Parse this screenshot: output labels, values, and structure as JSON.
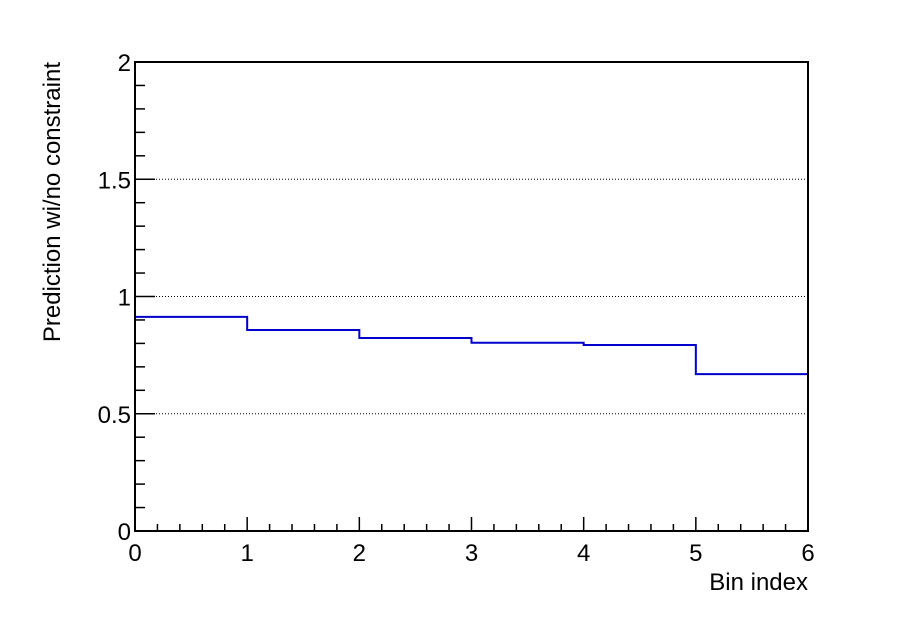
{
  "chart_data": {
    "type": "line",
    "step": true,
    "title": "",
    "xlabel": "Bin index",
    "ylabel": "Prediction wi/no constraint",
    "xlim": [
      0,
      6
    ],
    "ylim": [
      0,
      2
    ],
    "x_ticks": [
      "0",
      "1",
      "2",
      "3",
      "4",
      "5",
      "6"
    ],
    "y_ticks": [
      "0",
      "0.5",
      "1",
      "1.5",
      "2"
    ],
    "x_tick_values": [
      0,
      1,
      2,
      3,
      4,
      5,
      6
    ],
    "y_tick_values": [
      0,
      0.5,
      1,
      1.5,
      2
    ],
    "y_gridlines": [
      0.5,
      1.0,
      1.5
    ],
    "grid": "horizontal dotted",
    "legend": "none",
    "bin_edges": [
      0,
      1,
      2,
      3,
      4,
      5,
      6
    ],
    "series": [
      {
        "values": [
          0.913,
          0.857,
          0.823,
          0.803,
          0.793,
          0.669
        ],
        "color": "#0000cc"
      }
    ]
  }
}
